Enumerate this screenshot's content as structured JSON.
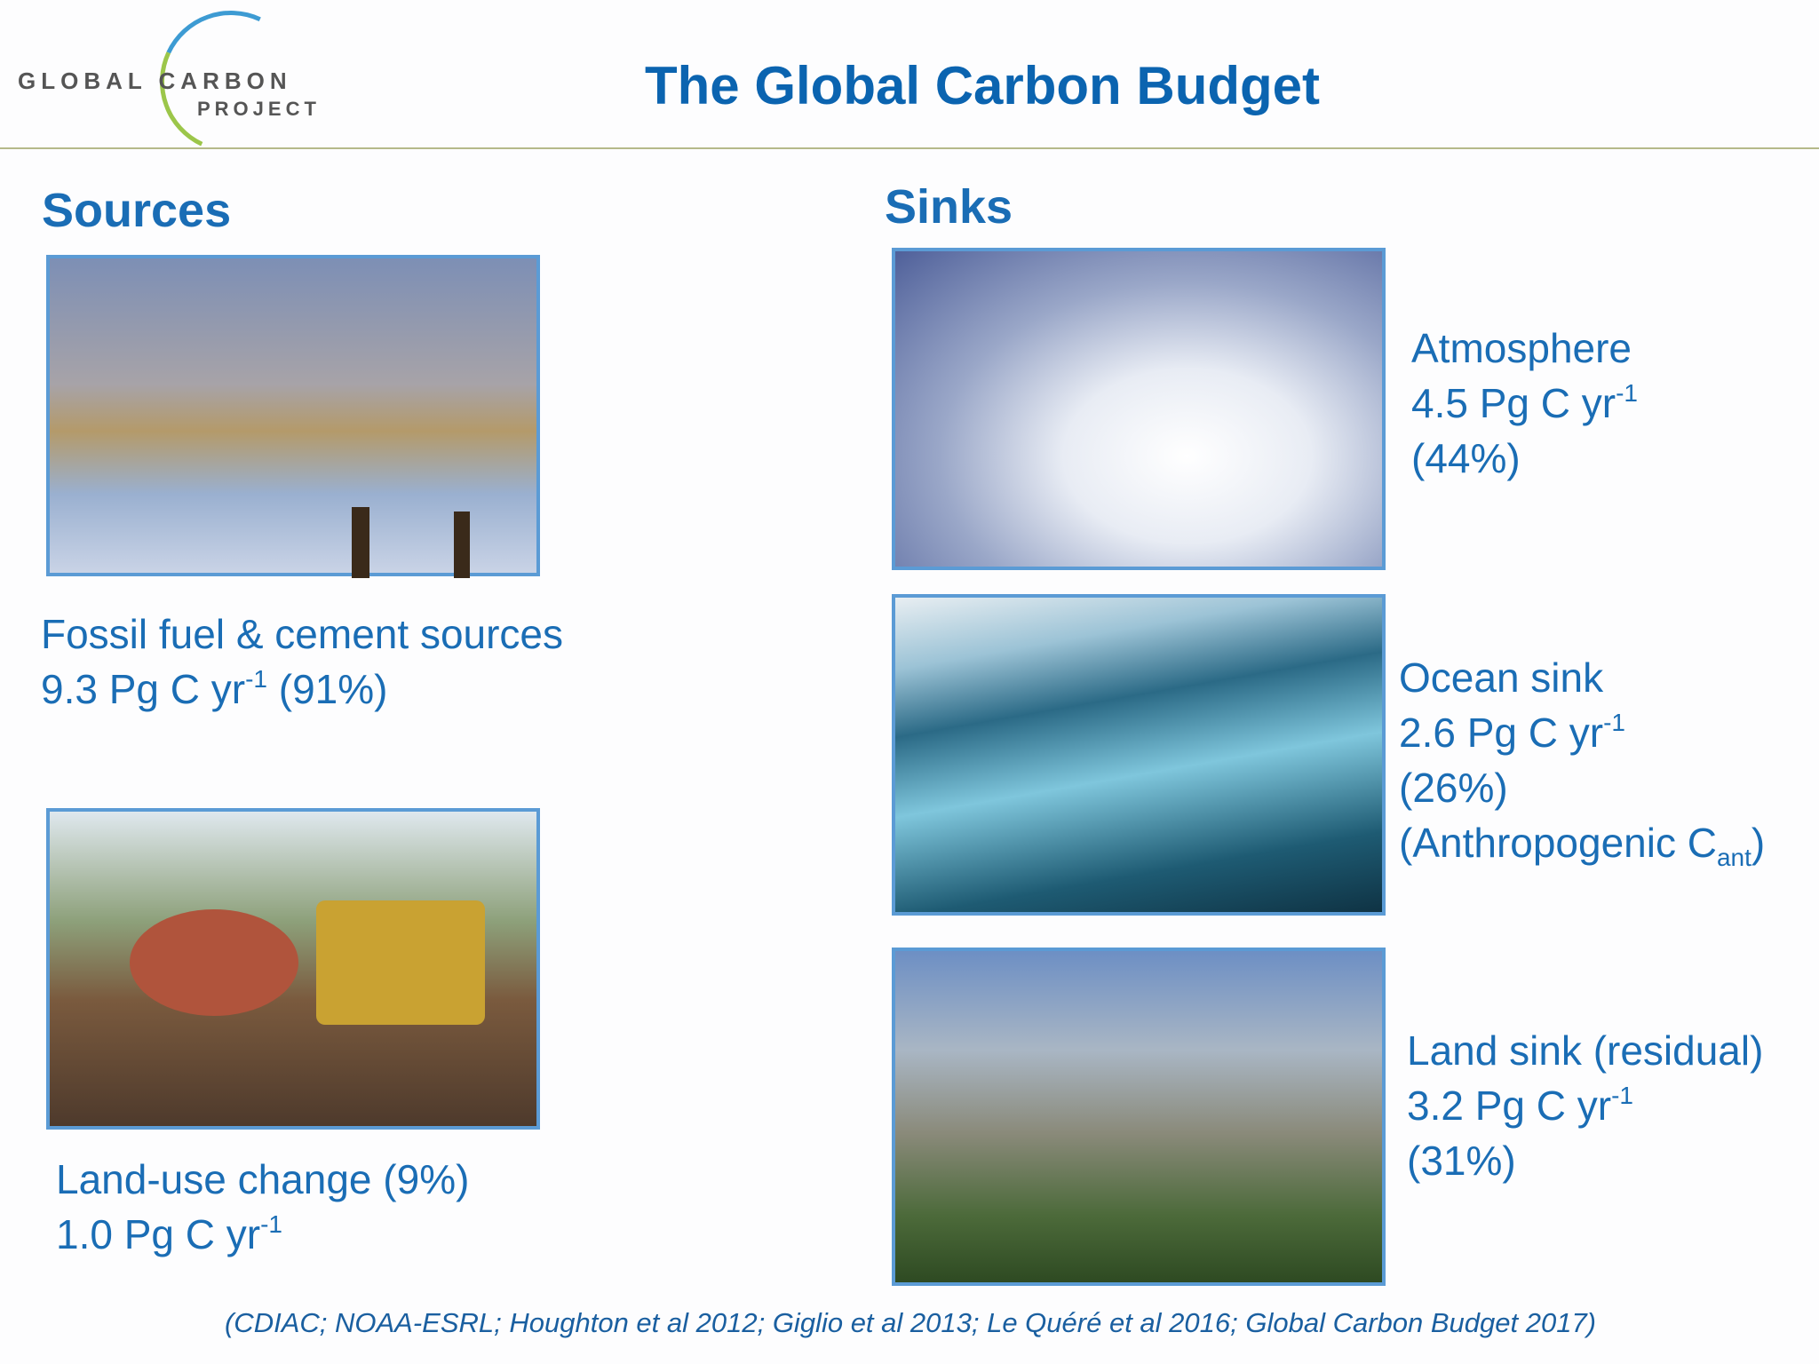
{
  "header": {
    "logo": {
      "word1": "GLOBAL",
      "word2": "CARBON",
      "word3": "PROJECT"
    },
    "title": "The Global Carbon Budget"
  },
  "sources": {
    "heading": "Sources",
    "items": [
      {
        "name": "Fossil fuel & cement sources",
        "amount": "9.3 Pg C yr",
        "exponent": "-1",
        "share": "(91%)"
      },
      {
        "name": "Land-use change (9%)",
        "amount": "1.0 Pg C yr",
        "exponent": "-1"
      }
    ]
  },
  "sinks": {
    "heading": "Sinks",
    "items": [
      {
        "name": "Atmosphere",
        "amount": "4.5 Pg C yr",
        "exponent": "-1",
        "share": "(44%)"
      },
      {
        "name": "Ocean sink",
        "amount": "2.6 Pg C yr",
        "exponent": "-1",
        "share": "(26%)",
        "note": "(Anthropogenic C",
        "note_sub": "ant",
        "note_end": ")"
      },
      {
        "name": "Land sink (residual)",
        "amount": "3.2 Pg C yr",
        "exponent": "-1",
        "share": "(31%)"
      }
    ]
  },
  "citation": "(CDIAC; NOAA-ESRL; Houghton et al 2012; Giglio et al 2013; Le Quéré et al 2016; Global Carbon Budget 2017)"
}
